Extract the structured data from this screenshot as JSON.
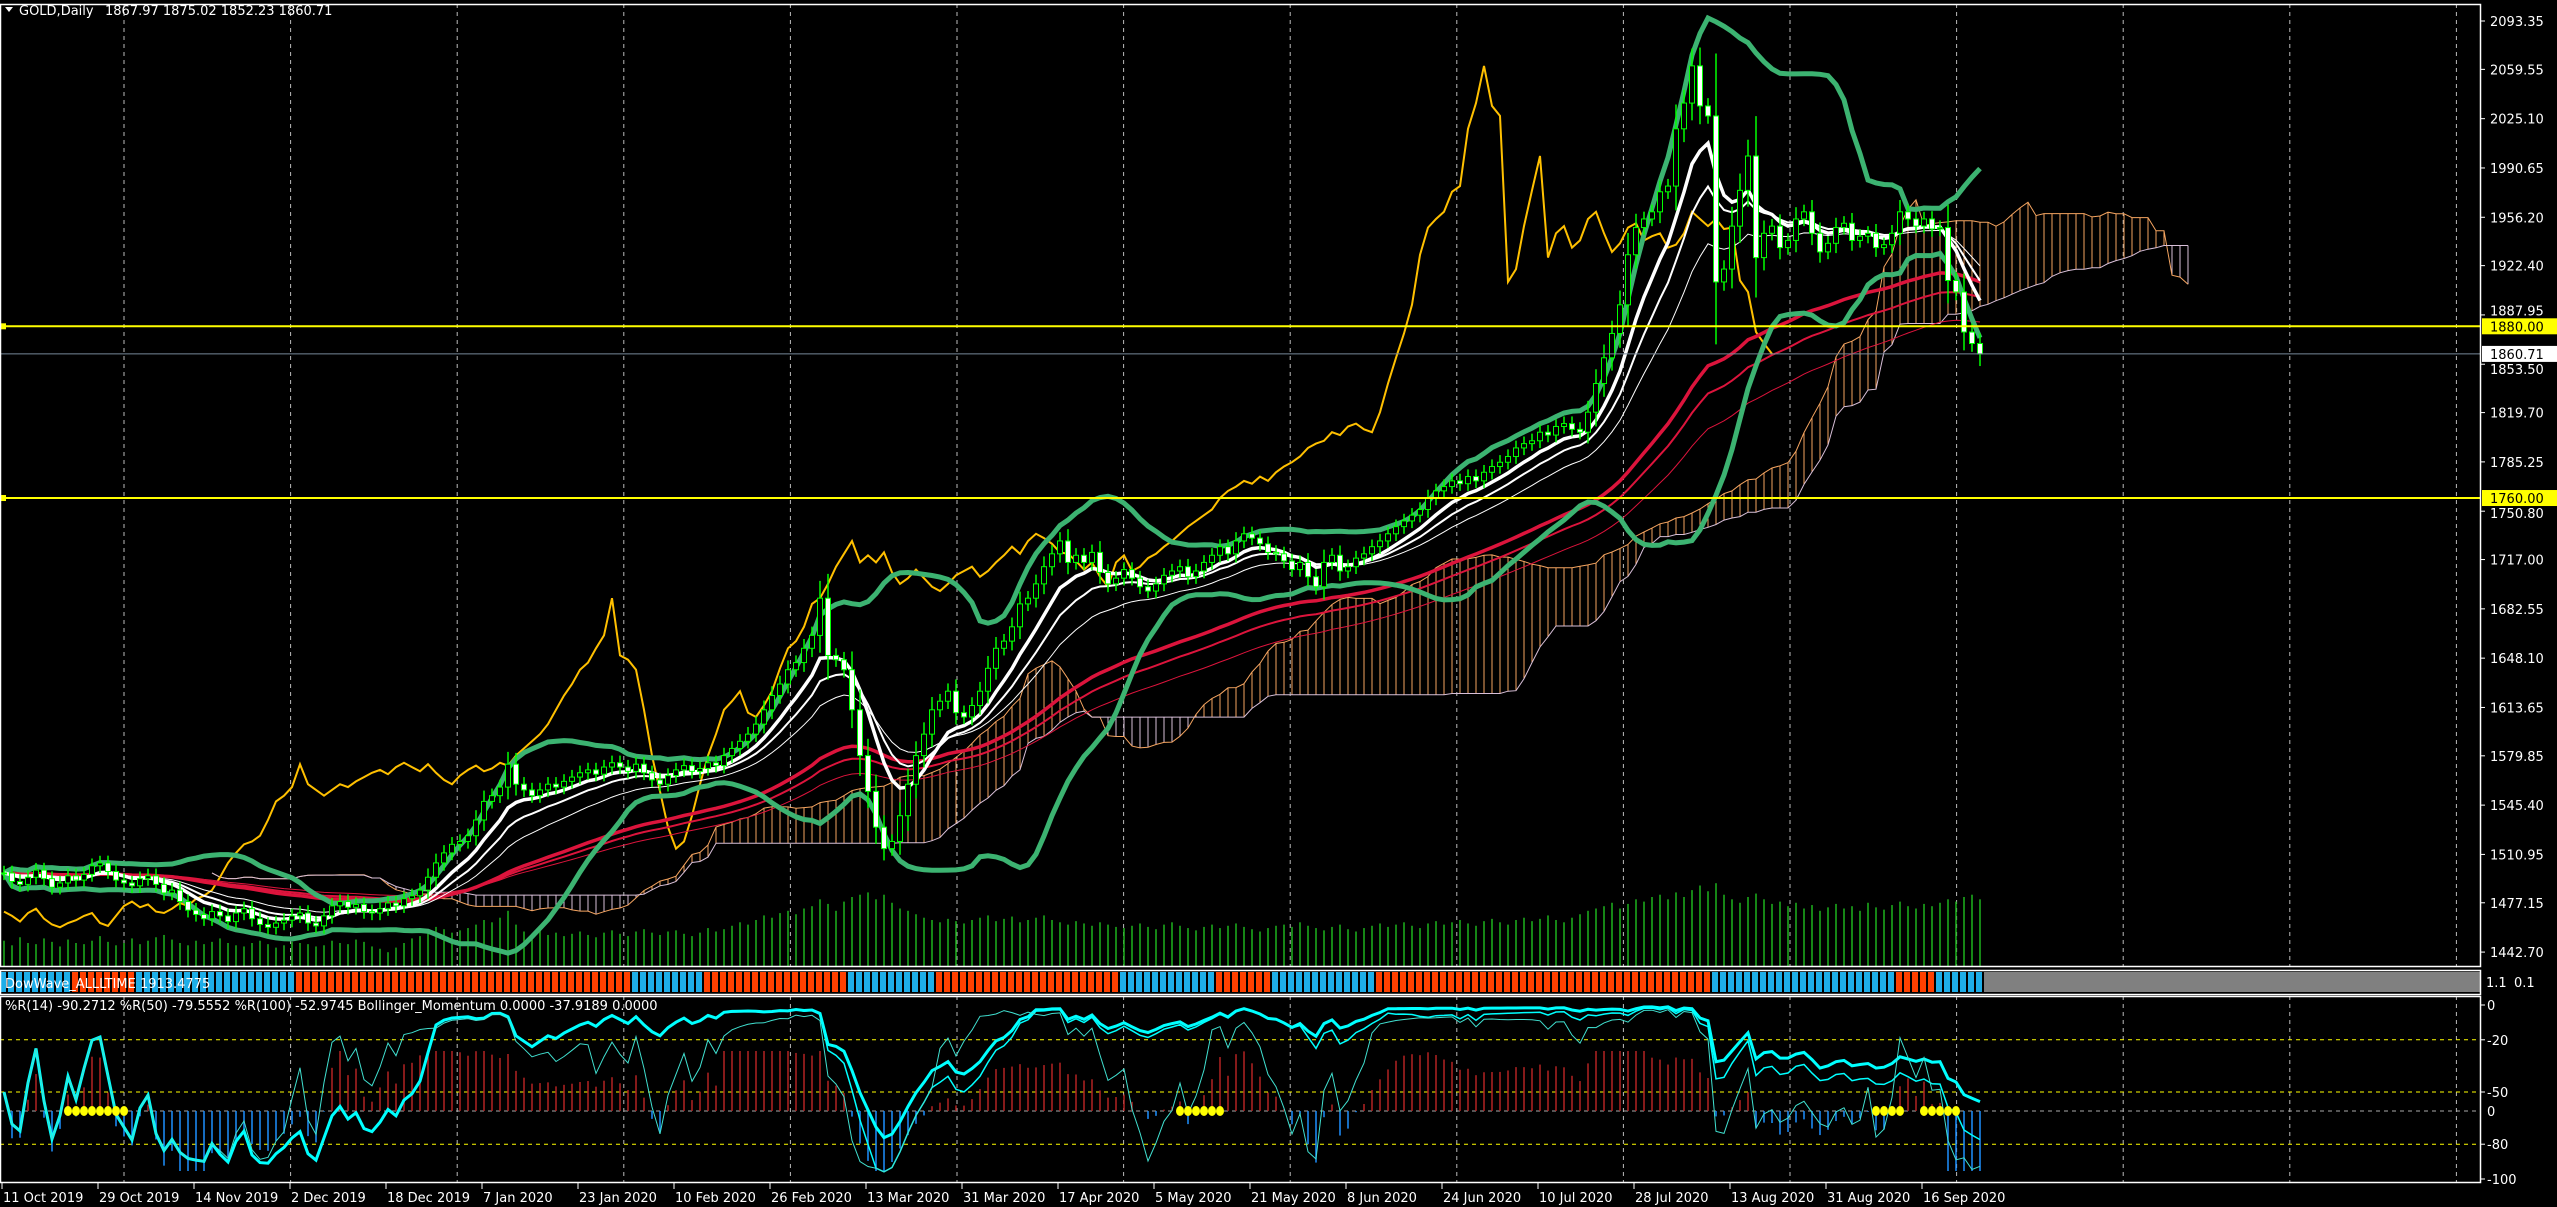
{
  "header": {
    "symbol_timeframe": "GOLD,Daily",
    "ohlc": "1867.97 1875.02 1852.23 1860.71",
    "menu_icon": "triangle-down-icon"
  },
  "colors": {
    "background": "#000000",
    "bull_candle": "#00FF00",
    "bear_body": "#FFFFFF",
    "bollinger": "#3CB371",
    "ema_lines": "#FFFFFF",
    "long_ma": "#DC143C",
    "cloud_bull": "#F4A460",
    "cloud_bear": "#D8BFD8",
    "chikou": "#FFC000",
    "level_line": "#FFFF00",
    "current_price_line": "#778899",
    "volume": "#1DB31D",
    "dowwave_up": "#1EAEE8",
    "dowwave_down": "#FF4000",
    "williams": "#00FFFF",
    "momentum_pos": "#B22222",
    "momentum_neg": "#1E90FF",
    "signal": "#FFFF00"
  },
  "price_axis": {
    "ticks": [
      "2093.35",
      "2059.55",
      "2025.10",
      "1990.65",
      "1956.20",
      "1922.40",
      "1887.95",
      "1853.50",
      "1819.70",
      "1785.25",
      "1750.80",
      "1717.00",
      "1682.55",
      "1648.10",
      "1613.65",
      "1579.85",
      "1545.40",
      "1510.95",
      "1477.15",
      "1442.70"
    ],
    "levels": [
      {
        "value": 1880.0,
        "label": "1880.00"
      },
      {
        "value": 1760.0,
        "label": "1760.00"
      }
    ],
    "current_price": {
      "value": 1860.71,
      "label": "1860.71"
    }
  },
  "date_axis": {
    "labels": [
      "11 Oct 2019",
      "29 Oct 2019",
      "14 Nov 2019",
      "2 Dec 2019",
      "18 Dec 2019",
      "7 Jan 2020",
      "23 Jan 2020",
      "10 Feb 2020",
      "26 Feb 2020",
      "13 Mar 2020",
      "31 Mar 2020",
      "17 Apr 2020",
      "5 May 2020",
      "21 May 2020",
      "8 Jun 2020",
      "24 Jun 2020",
      "10 Jul 2020",
      "28 Jul 2020",
      "13 Aug 2020",
      "31 Aug 2020",
      "16 Sep 2020"
    ]
  },
  "dowwave": {
    "label": "DowWave_ALLLTIME 1913.4775",
    "segments": [
      {
        "dir": "up",
        "bars": 9
      },
      {
        "dir": "down",
        "bars": 8
      },
      {
        "dir": "up",
        "bars": 20
      },
      {
        "dir": "down",
        "bars": 42
      },
      {
        "dir": "up",
        "bars": 9
      },
      {
        "dir": "down",
        "bars": 18
      },
      {
        "dir": "up",
        "bars": 11
      },
      {
        "dir": "down",
        "bars": 23
      },
      {
        "dir": "up",
        "bars": 12
      },
      {
        "dir": "down",
        "bars": 7
      },
      {
        "dir": "up",
        "bars": 13
      },
      {
        "dir": "down",
        "bars": 42
      },
      {
        "dir": "up",
        "bars": 23
      },
      {
        "dir": "down",
        "bars": 5
      },
      {
        "dir": "up",
        "bars": 6
      }
    ],
    "scale_label": "1.1",
    "scale_label2": "0.1"
  },
  "oscillator": {
    "label": "%R(14) -90.2712  %R(50) -79.5552  %R(100) -52.9745  Bollinger_Momentum 0.0000 -37.9189 0.0000",
    "ticks": [
      {
        "value": 0,
        "label": "0"
      },
      {
        "value": -20,
        "label": "-20"
      },
      {
        "value": -50,
        "label": "-50"
      },
      {
        "value": -80,
        "label": "-80"
      },
      {
        "value": -100,
        "label": "-100"
      }
    ],
    "momentum_zero_label": "0",
    "signal_bar_ranges": [
      [
        8,
        15
      ],
      [
        147,
        152
      ],
      [
        234,
        237
      ],
      [
        240,
        244
      ]
    ]
  },
  "chart_data": {
    "type": "candlestick",
    "symbol": "GOLD",
    "timeframe": "Daily",
    "ylim": [
      1442.7,
      2093.35
    ],
    "grid": true,
    "close": [
      1498,
      1492,
      1490,
      1495,
      1500,
      1494,
      1488,
      1491,
      1496,
      1493,
      1497,
      1503,
      1505,
      1499,
      1493,
      1491,
      1489,
      1494,
      1496,
      1490,
      1484,
      1486,
      1478,
      1472,
      1469,
      1466,
      1471,
      1468,
      1464,
      1470,
      1473,
      1466,
      1462,
      1460,
      1463,
      1465,
      1468,
      1470,
      1463,
      1461,
      1468,
      1475,
      1478,
      1474,
      1476,
      1471,
      1470,
      1473,
      1477,
      1475,
      1480,
      1482,
      1486,
      1495,
      1505,
      1512,
      1518,
      1520,
      1524,
      1535,
      1548,
      1552,
      1558,
      1574,
      1560,
      1556,
      1552,
      1556,
      1560,
      1558,
      1562,
      1565,
      1568,
      1570,
      1567,
      1572,
      1575,
      1572,
      1569,
      1574,
      1568,
      1563,
      1560,
      1566,
      1570,
      1573,
      1569,
      1571,
      1575,
      1573,
      1580,
      1585,
      1590,
      1595,
      1602,
      1612,
      1622,
      1630,
      1640,
      1645,
      1655,
      1664,
      1690,
      1650,
      1647,
      1640,
      1612,
      1580,
      1555,
      1530,
      1515,
      1520,
      1538,
      1560,
      1580,
      1595,
      1612,
      1618,
      1625,
      1610,
      1607,
      1615,
      1625,
      1641,
      1655,
      1660,
      1670,
      1686,
      1690,
      1700,
      1712,
      1721,
      1730,
      1715,
      1720,
      1715,
      1722,
      1708,
      1700,
      1704,
      1710,
      1704,
      1698,
      1695,
      1700,
      1706,
      1709,
      1712,
      1705,
      1709,
      1715,
      1720,
      1726,
      1721,
      1730,
      1735,
      1732,
      1728,
      1722,
      1721,
      1716,
      1710,
      1715,
      1705,
      1698,
      1715,
      1720,
      1709,
      1712,
      1718,
      1721,
      1726,
      1730,
      1735,
      1740,
      1744,
      1748,
      1752,
      1760,
      1765,
      1768,
      1772,
      1770,
      1775,
      1772,
      1778,
      1782,
      1785,
      1789,
      1795,
      1798,
      1800,
      1806,
      1804,
      1810,
      1812,
      1808,
      1806,
      1820,
      1840,
      1858,
      1875,
      1895,
      1930,
      1949,
      1955,
      1960,
      1974,
      1978,
      2018,
      2036,
      2062,
      2034,
      2027,
      1911,
      1920,
      1950,
      1975,
      1999,
      1928,
      1945,
      1950,
      1935,
      1940,
      1955,
      1960,
      1945,
      1932,
      1938,
      1949,
      1952,
      1940,
      1943,
      1945,
      1935,
      1937,
      1945,
      1960,
      1955,
      1950,
      1955,
      1948,
      1949,
      1912,
      1904,
      1876,
      1867.97,
      1860.71
    ],
    "volume": [
      22,
      18,
      25,
      20,
      19,
      24,
      21,
      17,
      23,
      20,
      19,
      22,
      26,
      21,
      18,
      20,
      24,
      19,
      22,
      25,
      27,
      23,
      20,
      18,
      22,
      19,
      21,
      24,
      20,
      18,
      17,
      20,
      22,
      19,
      16,
      18,
      21,
      20,
      19,
      17,
      18,
      22,
      20,
      19,
      23,
      21,
      17,
      15,
      12,
      16,
      20,
      24,
      26,
      30,
      34,
      32,
      29,
      31,
      33,
      36,
      40,
      38,
      42,
      48,
      36,
      30,
      28,
      31,
      27,
      29,
      26,
      28,
      30,
      27,
      25,
      29,
      31,
      28,
      26,
      30,
      32,
      29,
      27,
      30,
      31,
      28,
      26,
      29,
      33,
      30,
      32,
      35,
      38,
      36,
      40,
      44,
      42,
      46,
      48,
      45,
      50,
      52,
      58,
      54,
      48,
      56,
      60,
      62,
      64,
      58,
      62,
      55,
      50,
      48,
      45,
      42,
      40,
      38,
      41,
      39,
      37,
      40,
      42,
      44,
      39,
      41,
      43,
      38,
      40,
      42,
      44,
      40,
      38,
      36,
      39,
      37,
      35,
      38,
      36,
      34,
      33,
      35,
      37,
      34,
      32,
      36,
      38,
      35,
      33,
      31,
      34,
      36,
      33,
      35,
      37,
      34,
      32,
      30,
      33,
      35,
      36,
      34,
      38,
      35,
      33,
      31,
      34,
      36,
      32,
      30,
      33,
      35,
      37,
      34,
      36,
      38,
      35,
      33,
      37,
      39,
      36,
      38,
      40,
      37,
      35,
      39,
      41,
      38,
      36,
      40,
      42,
      39,
      41,
      44,
      40,
      38,
      42,
      45,
      48,
      50,
      52,
      55,
      50,
      54,
      58,
      56,
      60,
      62,
      58,
      64,
      60,
      66,
      70,
      65,
      72,
      62,
      58,
      55,
      60,
      63,
      58,
      54,
      56,
      52,
      55,
      50,
      53,
      48,
      51,
      54,
      50,
      52,
      48,
      55,
      51,
      49,
      53,
      56,
      52,
      50,
      54,
      52,
      55,
      58,
      56,
      60,
      62,
      58
    ],
    "last_bar": {
      "open": 1867.97,
      "high": 1875.02,
      "low": 1852.23,
      "close": 1860.71
    }
  }
}
